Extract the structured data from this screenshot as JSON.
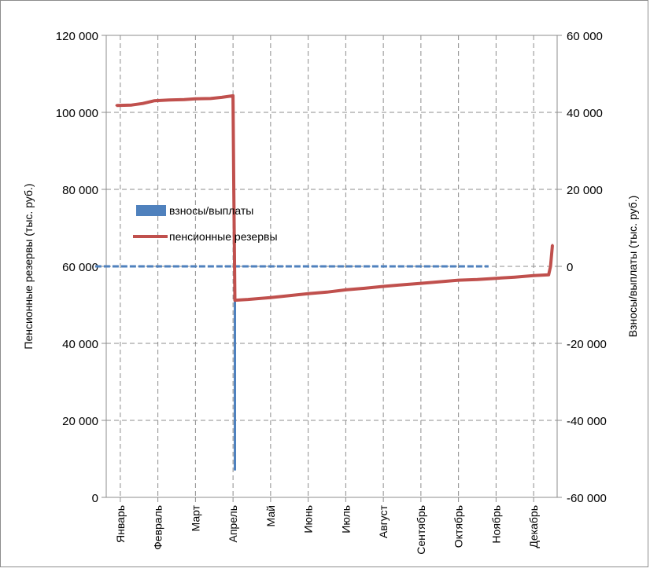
{
  "chart_data": {
    "type": "line",
    "title": "",
    "categories": [
      "Январь",
      "Февраль",
      "Март",
      "Апрель",
      "Май",
      "Июнь",
      "Июль",
      "Август",
      "Сентябрь",
      "Октябрь",
      "Ноябрь",
      "Декабрь"
    ],
    "y_left": {
      "label": "Пенсионные резервы (тыс. руб.)",
      "ylim": [
        0,
        120000
      ],
      "ticks": [
        0,
        20000,
        40000,
        60000,
        80000,
        100000,
        120000
      ],
      "tick_labels": [
        "0",
        "20 000",
        "40 000",
        "60 000",
        "80 000",
        "100 000",
        "120 000"
      ]
    },
    "y_right": {
      "label": "Взносы/выплаты (тыс. руб.)",
      "ylim": [
        -60000,
        60000
      ],
      "ticks": [
        -60000,
        -40000,
        -20000,
        0,
        20000,
        40000,
        60000
      ],
      "tick_labels": [
        "-60 000",
        "-40 000",
        "-20 000",
        "0",
        "20 000",
        "40 000",
        "60 000"
      ]
    },
    "grid": true,
    "legend_position": "center-left",
    "series": [
      {
        "name": "взносы/выплаты",
        "axis": "right",
        "color": "#4f81bd",
        "style": "bar-like",
        "x": [
          0.0,
          0.5,
          1.0,
          1.5,
          2.0,
          2.5,
          3.0,
          3.05,
          3.1,
          3.5,
          4.0,
          4.5,
          5.0,
          5.5,
          6.0,
          6.5,
          7.0,
          7.5,
          8.0,
          8.5,
          9.0,
          9.5,
          9.8
        ],
        "values": [
          0,
          200,
          -100,
          150,
          0,
          100,
          -200,
          -53000,
          0,
          0,
          100,
          -100,
          0,
          150,
          -100,
          0,
          100,
          -50,
          100,
          0,
          -100,
          50,
          0
        ]
      },
      {
        "name": "пенсионные резервы",
        "axis": "left",
        "color": "#c0504d",
        "style": "line",
        "x": [
          -0.1,
          0.3,
          0.6,
          0.9,
          1.3,
          1.7,
          2.0,
          2.4,
          2.7,
          3.0,
          3.02,
          3.05,
          3.4,
          4.0,
          4.5,
          5.0,
          5.5,
          6.0,
          6.5,
          7.0,
          7.5,
          8.0,
          8.5,
          9.0,
          9.5,
          10.0,
          10.5,
          11.0,
          11.4,
          11.45,
          11.5
        ],
        "values": [
          101800,
          101900,
          102300,
          103000,
          103200,
          103300,
          103500,
          103600,
          103900,
          104300,
          80000,
          51200,
          51400,
          51900,
          52400,
          52900,
          53300,
          53900,
          54300,
          54800,
          55200,
          55600,
          56000,
          56400,
          56600,
          56900,
          57200,
          57600,
          57800,
          60000,
          65500
        ]
      }
    ]
  }
}
